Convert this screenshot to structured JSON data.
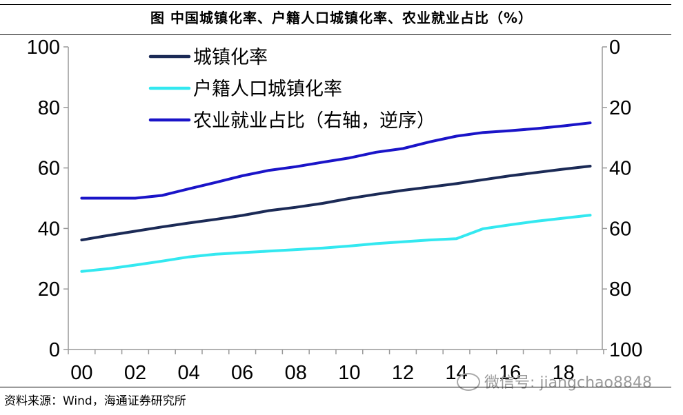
{
  "title": "图  中国城镇化率、户籍人口城镇化率、农业就业占比（%）",
  "source": "资料来源：Wind，海通证券研究所",
  "watermark": {
    "text": "微信号: jiangchao8848",
    "icon": "wechat-icon"
  },
  "chart_data": {
    "type": "line",
    "x_ticks": [
      "00",
      "02",
      "04",
      "06",
      "08",
      "10",
      "12",
      "14",
      "16",
      "18"
    ],
    "left_axis": {
      "min": 0,
      "max": 100,
      "ticks": [
        0,
        20,
        40,
        60,
        80,
        100
      ]
    },
    "right_axis": {
      "min": 0,
      "max": 100,
      "ticks": [
        0,
        20,
        40,
        60,
        80,
        100
      ],
      "reversed": true
    },
    "legend_position": "top-left",
    "grid": false,
    "series": [
      {
        "name": "城镇化率",
        "axis": "left",
        "color": "#1b2a56",
        "x": [
          2000,
          2001,
          2002,
          2003,
          2004,
          2005,
          2006,
          2007,
          2008,
          2009,
          2010,
          2011,
          2012,
          2013,
          2014,
          2015,
          2016,
          2017,
          2018,
          2019
        ],
        "values": [
          36.2,
          37.7,
          39.1,
          40.5,
          41.8,
          43.0,
          44.3,
          45.9,
          47.0,
          48.3,
          49.9,
          51.3,
          52.6,
          53.7,
          54.8,
          56.1,
          57.4,
          58.5,
          59.6,
          60.6
        ]
      },
      {
        "name": "户籍人口城镇化率",
        "axis": "left",
        "color": "#33e8f0",
        "x": [
          2000,
          2001,
          2002,
          2003,
          2004,
          2005,
          2006,
          2007,
          2008,
          2009,
          2010,
          2011,
          2012,
          2013,
          2014,
          2015,
          2016,
          2017,
          2018,
          2019
        ],
        "values": [
          25.8,
          26.7,
          27.9,
          29.2,
          30.6,
          31.5,
          32.0,
          32.5,
          33.0,
          33.5,
          34.2,
          35.0,
          35.6,
          36.2,
          36.6,
          39.9,
          41.2,
          42.4,
          43.4,
          44.4
        ]
      },
      {
        "name": "农业就业占比（右轴，逆序）",
        "axis": "right",
        "color": "#1a14c8",
        "x": [
          2000,
          2001,
          2002,
          2003,
          2004,
          2005,
          2006,
          2007,
          2008,
          2009,
          2010,
          2011,
          2012,
          2013,
          2014,
          2015,
          2016,
          2017,
          2018,
          2019
        ],
        "values": [
          50.0,
          50.0,
          50.0,
          49.1,
          46.9,
          44.8,
          42.6,
          40.8,
          39.6,
          38.1,
          36.7,
          34.8,
          33.6,
          31.4,
          29.5,
          28.3,
          27.7,
          27.0,
          26.1,
          25.1
        ]
      }
    ]
  }
}
